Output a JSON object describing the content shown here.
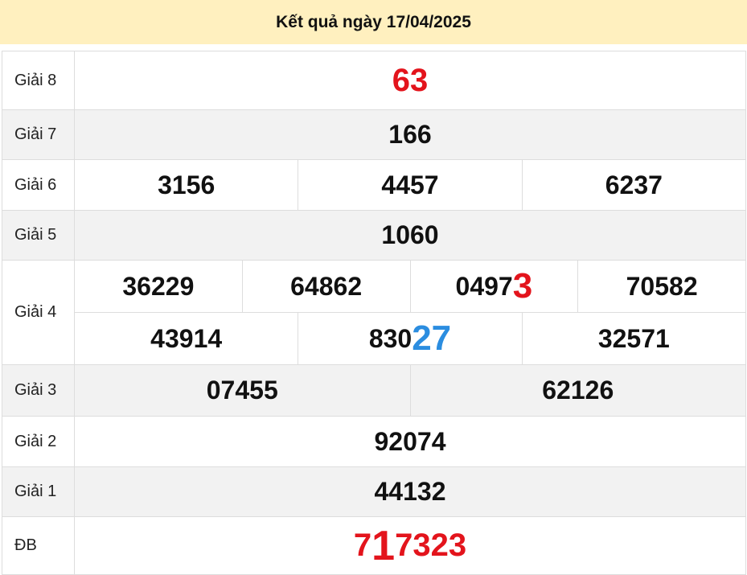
{
  "header": {
    "title": "Kết quả ngày 17/04/2025"
  },
  "colors": {
    "header_bg": "#fff0bf",
    "red": "#e3141c",
    "blue": "#2b8de0",
    "row_alt": "#f2f2f2"
  },
  "prizes": [
    {
      "label": "Giải 8",
      "numbers": [
        [
          "63"
        ]
      ]
    },
    {
      "label": "Giải 7",
      "numbers": [
        [
          "166"
        ]
      ]
    },
    {
      "label": "Giải 6",
      "numbers": [
        [
          "3156",
          "4457",
          "6237"
        ]
      ]
    },
    {
      "label": "Giải 5",
      "numbers": [
        [
          "1060"
        ]
      ]
    },
    {
      "label": "Giải 4",
      "numbers": [
        [
          {
            "text": "36229"
          },
          {
            "text": "64862"
          },
          {
            "text": "0497",
            "hl": "3"
          },
          {
            "text": "70582"
          }
        ],
        [
          {
            "text": "43914"
          },
          {
            "text": "830",
            "hl": "27"
          },
          {
            "text": "32571"
          }
        ]
      ]
    },
    {
      "label": "Giải 3",
      "numbers": [
        [
          "07455",
          "62126"
        ]
      ]
    },
    {
      "label": "Giải 2",
      "numbers": [
        [
          "92074"
        ]
      ]
    },
    {
      "label": "Giải 1",
      "numbers": [
        [
          "44132"
        ]
      ]
    },
    {
      "label": "ĐB",
      "numbers": [
        [
          {
            "a": "7",
            "b": "1",
            "c": "7323"
          }
        ]
      ]
    }
  ]
}
